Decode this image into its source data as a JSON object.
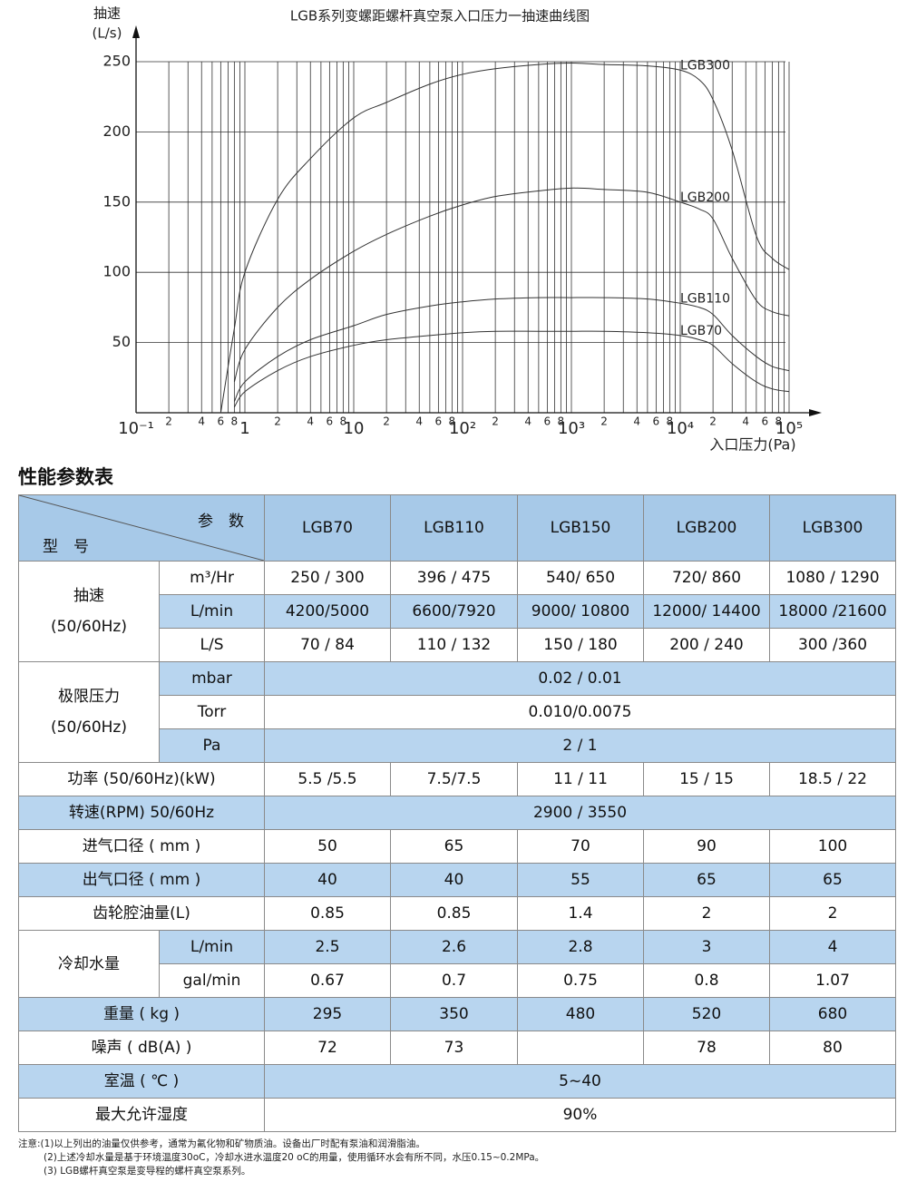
{
  "chart_data": {
    "type": "line",
    "title": "LGB系列变螺距螺杆真空泵入口压力一抽速曲线图",
    "ylabel": [
      "抽速",
      "(L/s)"
    ],
    "xlabel": "入口压力(Pa)",
    "xscale": "log",
    "grid": true,
    "xlim": [
      0.1,
      100000
    ],
    "ylim": [
      0,
      250
    ],
    "yticks": [
      50,
      100,
      150,
      200,
      250
    ],
    "xticks": [
      {
        "value": 0.1,
        "label": "10⁻¹"
      },
      {
        "value": 0.2,
        "label": "2"
      },
      {
        "value": 0.4,
        "label": "4"
      },
      {
        "value": 0.6,
        "label": "6"
      },
      {
        "value": 0.8,
        "label": "8"
      },
      1,
      2,
      4,
      6,
      8,
      10,
      {
        "value": 20,
        "label": "2"
      },
      {
        "value": 40,
        "label": "4"
      },
      {
        "value": 60,
        "label": "6"
      },
      {
        "value": 80,
        "label": "8"
      },
      {
        "value": 100,
        "label": "10²"
      },
      {
        "value": 200,
        "label": "2"
      },
      {
        "value": 400,
        "label": "4"
      },
      {
        "value": 600,
        "label": "6"
      },
      {
        "value": 800,
        "label": "8"
      },
      {
        "value": 1000,
        "label": "10³"
      },
      {
        "value": 2000,
        "label": "2"
      },
      {
        "value": 4000,
        "label": "4"
      },
      {
        "value": 6000,
        "label": "6"
      },
      {
        "value": 8000,
        "label": "8"
      },
      {
        "value": 10000,
        "label": "10⁴"
      },
      {
        "value": 20000,
        "label": "2"
      },
      {
        "value": 40000,
        "label": "4"
      },
      {
        "value": 60000,
        "label": "6"
      },
      {
        "value": 80000,
        "label": "8"
      },
      {
        "value": 100000,
        "label": "10⁵"
      }
    ],
    "x": [
      0.6,
      0.8,
      1,
      2,
      4,
      10,
      20,
      50,
      100,
      200,
      500,
      1000,
      2000,
      5000,
      10000,
      15000,
      20000,
      30000,
      50000,
      70000,
      100000
    ],
    "series": [
      {
        "name": "LGB300",
        "color": "#333333",
        "values": [
          0,
          60,
          100,
          152,
          181,
          210,
          221,
          234,
          241,
          245,
          248,
          249,
          248,
          247,
          244,
          237,
          223,
          187,
          126,
          110,
          102
        ]
      },
      {
        "name": "LGB200",
        "color": "#333333",
        "values": [
          null,
          22,
          45,
          75,
          95,
          115,
          127,
          140,
          148,
          154,
          158,
          160,
          159,
          157,
          150,
          145,
          138,
          110,
          80,
          72,
          69
        ]
      },
      {
        "name": "LGB110",
        "color": "#333333",
        "values": [
          null,
          8,
          22,
          40,
          52,
          62,
          70,
          76,
          79,
          81,
          82,
          82,
          82,
          81,
          78,
          75,
          70,
          55,
          40,
          33,
          30
        ]
      },
      {
        "name": "LGB70",
        "color": "#333333",
        "values": [
          null,
          4,
          15,
          30,
          40,
          48,
          52,
          55,
          57,
          58,
          58,
          58,
          58,
          57,
          55,
          52,
          48,
          35,
          22,
          17,
          15
        ]
      }
    ]
  },
  "section_title": "性能参数表",
  "table": {
    "header": {
      "param": "参　数",
      "model": "型　号",
      "columns": [
        "LGB70",
        "LGB110",
        "LGB150",
        "LGB200",
        "LGB300"
      ]
    },
    "shade_color": "#b8d5ef",
    "header_color": "#a7c9e8",
    "rows": [
      {
        "label": [
          "抽速",
          "(50/60Hz)"
        ],
        "subrows": [
          {
            "unit": "m³/Hr",
            "shaded": false,
            "cells": [
              "250 / 300",
              "396 / 475",
              "540/ 650",
              "720/ 860",
              "1080 / 1290"
            ]
          },
          {
            "unit": "L/min",
            "shaded": true,
            "cells": [
              "4200/5000",
              "6600/7920",
              "9000/ 10800",
              "12000/ 14400",
              "18000 /21600"
            ]
          },
          {
            "unit": "L/S",
            "shaded": false,
            "cells": [
              "70 / 84",
              "110 / 132",
              "150 / 180",
              "200 / 240",
              "300 /360"
            ]
          }
        ]
      },
      {
        "label": [
          "极限压力",
          "(50/60Hz)"
        ],
        "subrows": [
          {
            "unit": "mbar",
            "shaded": true,
            "cells": [
              "0.02 / 0.01"
            ]
          },
          {
            "unit": "Torr",
            "shaded": false,
            "cells": [
              "0.010/0.0075"
            ]
          },
          {
            "unit": "Pa",
            "shaded": true,
            "cells": [
              "2 / 1"
            ]
          }
        ]
      },
      {
        "label": [
          "功率 (50/60Hz)(kW)"
        ],
        "shaded": false,
        "cells": [
          "5.5 /5.5",
          "7.5/7.5",
          "11 / 11",
          "15 / 15",
          "18.5 / 22"
        ]
      },
      {
        "label": [
          "转速(RPM) 50/60Hz"
        ],
        "shaded": true,
        "cells": [
          "2900 / 3550"
        ]
      },
      {
        "label": [
          "进气口径 ( mm )"
        ],
        "shaded": false,
        "cells": [
          50,
          65,
          70,
          90,
          100
        ]
      },
      {
        "label": [
          "出气口径 ( mm )"
        ],
        "shaded": true,
        "cells": [
          40,
          40,
          55,
          65,
          65
        ]
      },
      {
        "label": [
          "齿轮腔油量(L)"
        ],
        "shaded": false,
        "cells": [
          0.85,
          0.85,
          1.4,
          2,
          2
        ]
      },
      {
        "label": [
          "冷却水量"
        ],
        "subrows": [
          {
            "unit": "L/min",
            "shaded": true,
            "cells": [
              2.5,
              2.6,
              2.8,
              3,
              4
            ]
          },
          {
            "unit": "gal/min",
            "shaded": false,
            "cells": [
              0.67,
              0.7,
              0.75,
              0.8,
              1.07
            ]
          }
        ]
      },
      {
        "label": [
          "重量 ( kg )"
        ],
        "shaded": true,
        "cells": [
          295,
          350,
          480,
          520,
          680
        ]
      },
      {
        "label": [
          "噪声 ( dB(A) )"
        ],
        "shaded": false,
        "cells": [
          72,
          73,
          null,
          78,
          80
        ]
      },
      {
        "label": [
          "室温 ( ℃ )"
        ],
        "shaded": true,
        "cells": [
          "5~40"
        ]
      },
      {
        "label": [
          "最大允许湿度"
        ],
        "shaded": false,
        "cells": [
          "90%"
        ]
      }
    ]
  },
  "notes": [
    "注意:(1)以上列出的油量仅供参考，通常为氟化物和矿物质油。设备出厂时配有泵油和润滑脂油。",
    "(2)上述冷却水量是基于环境温度30oC，冷却水进水温度20 oC的用量，使用循环水会有所不同，水压0.15~0.2MPa。",
    "(3) LGB螺杆真空泵是变导程的螺杆真空泵系列。"
  ]
}
